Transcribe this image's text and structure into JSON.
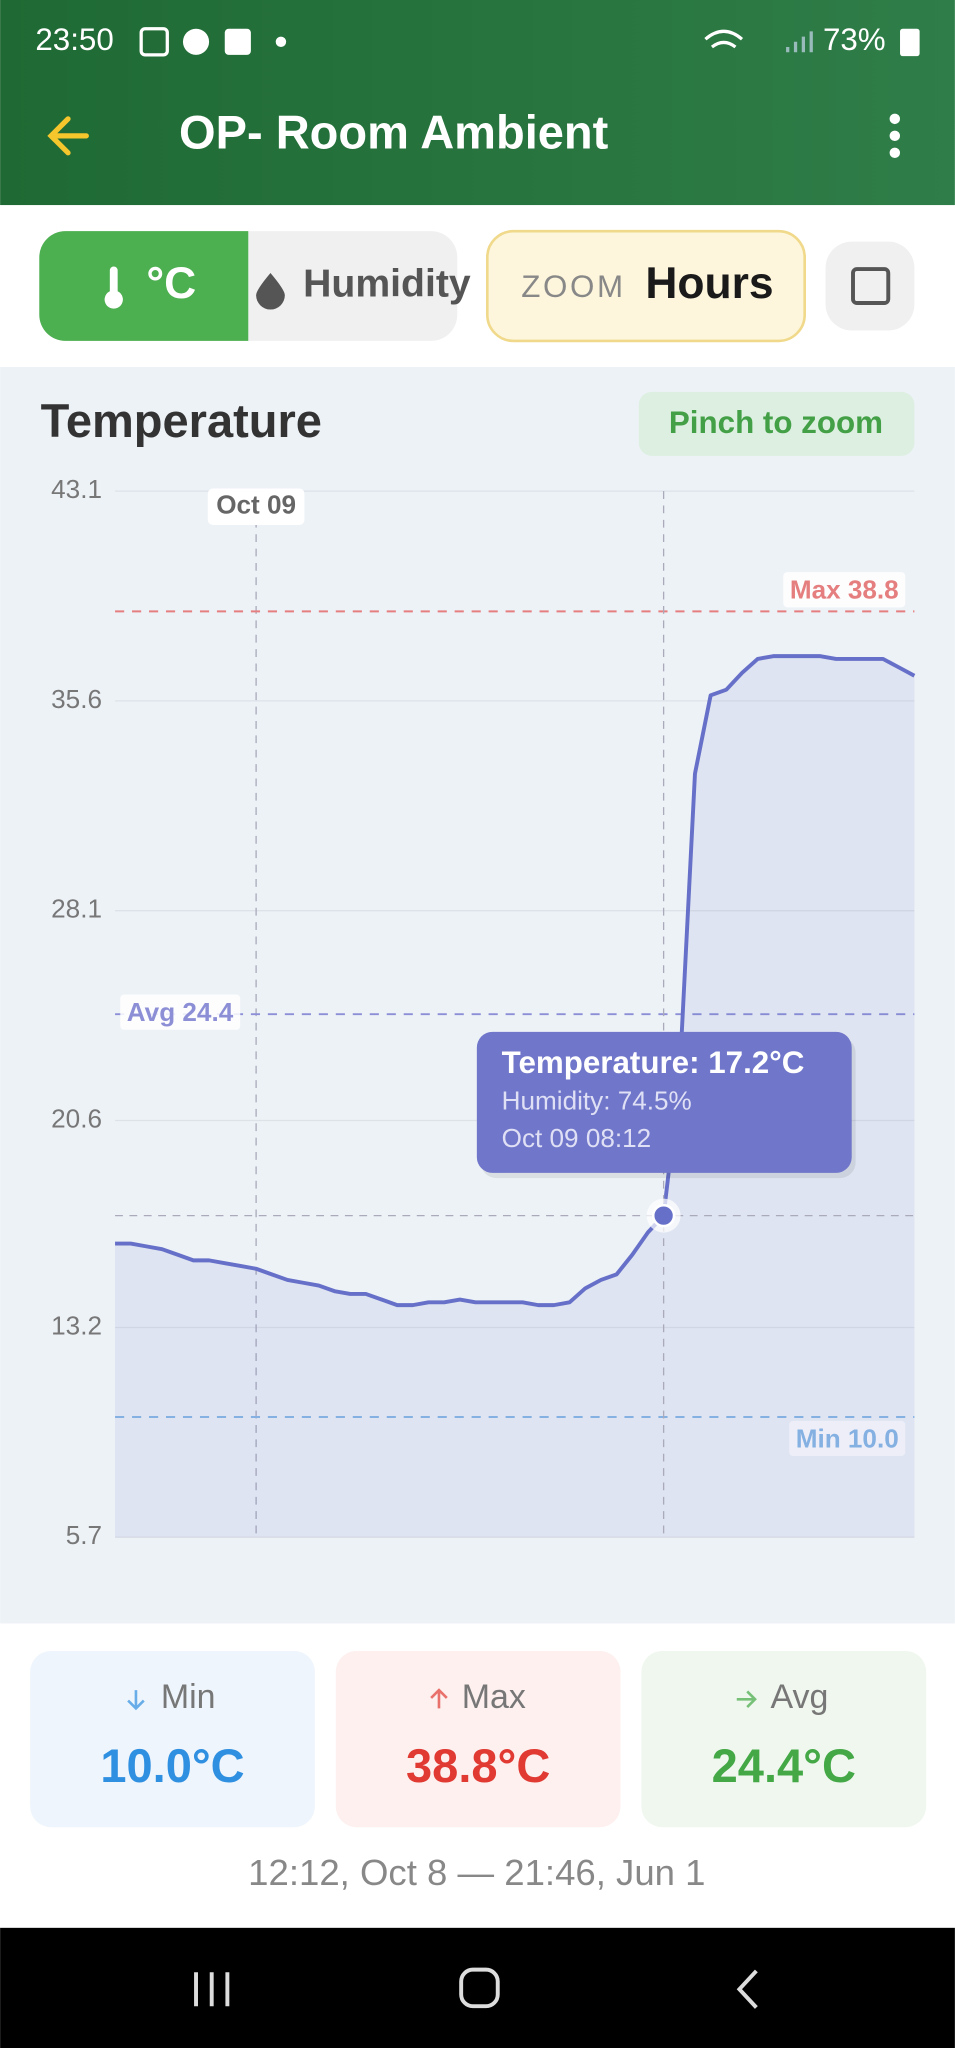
{
  "status_bar": {
    "time": "23:50",
    "battery": "73%"
  },
  "app_bar": {
    "title": "OP- Room Ambient"
  },
  "toolbar": {
    "unit_tab": "°C",
    "humidity_tab": "Humidity",
    "zoom_label": "ZOOM",
    "zoom_value": "Hours"
  },
  "chart_data": {
    "type": "line",
    "title": "Temperature",
    "badge": "Pinch to zoom",
    "ylim": [
      5.7,
      43.1
    ],
    "yticks": [
      5.7,
      13.2,
      20.6,
      28.1,
      35.6,
      43.1
    ],
    "grid": true,
    "categories": [
      null,
      null,
      null,
      null,
      null,
      null,
      null,
      null,
      null,
      "Oct 09",
      null,
      null,
      null,
      null,
      null,
      null,
      null,
      null,
      null,
      null,
      null,
      null,
      null,
      null,
      null,
      null,
      null,
      null,
      null,
      null,
      null,
      null,
      null,
      null,
      null,
      null,
      null,
      null,
      null,
      null,
      null,
      null,
      null,
      null,
      null,
      null,
      null,
      null,
      null,
      null,
      null,
      null
    ],
    "series": [
      {
        "name": "Temperature",
        "color": "#6670c8",
        "values": [
          16.2,
          16.2,
          16.1,
          16.0,
          15.8,
          15.6,
          15.6,
          15.5,
          15.4,
          15.3,
          15.1,
          14.9,
          14.8,
          14.7,
          14.5,
          14.4,
          14.4,
          14.2,
          14.0,
          14.0,
          14.1,
          14.1,
          14.2,
          14.1,
          14.1,
          14.1,
          14.1,
          14.0,
          14.0,
          14.1,
          14.6,
          14.9,
          15.1,
          15.8,
          16.6,
          17.2,
          22.0,
          33.0,
          35.8,
          36.0,
          36.6,
          37.1,
          37.2,
          37.2,
          37.2,
          37.2,
          37.1,
          37.1,
          37.1,
          37.1,
          36.8,
          36.5
        ]
      }
    ],
    "ref_lines": [
      {
        "value": 38.8,
        "label": "Max 38.8",
        "color": "#e57f7f",
        "label_side": "top-right"
      },
      {
        "value": 24.4,
        "label": "Avg 24.4",
        "color": "#8c8fd6",
        "label_side": "left"
      },
      {
        "value": 10.0,
        "label": "Min 10.0",
        "color": "#8ab9e6",
        "label_side": "bottom-right"
      }
    ],
    "tooltip": {
      "index": 35,
      "lines": [
        "Temperature: 17.2°C",
        "Humidity: 74.5%",
        "Oct 09 08:12"
      ]
    }
  },
  "stats": [
    {
      "label": "Min",
      "value": "10.0°C",
      "color": "#2f8fe0",
      "bg": "#eef5fc"
    },
    {
      "label": "Max",
      "value": "38.8°C",
      "color": "#e03a33",
      "bg": "#fdf0ef"
    },
    {
      "label": "Avg",
      "value": "24.4°C",
      "color": "#45a846",
      "bg": "#eff7ef"
    }
  ],
  "range": "12:12, Oct 8  —  21:46, Jun 1"
}
